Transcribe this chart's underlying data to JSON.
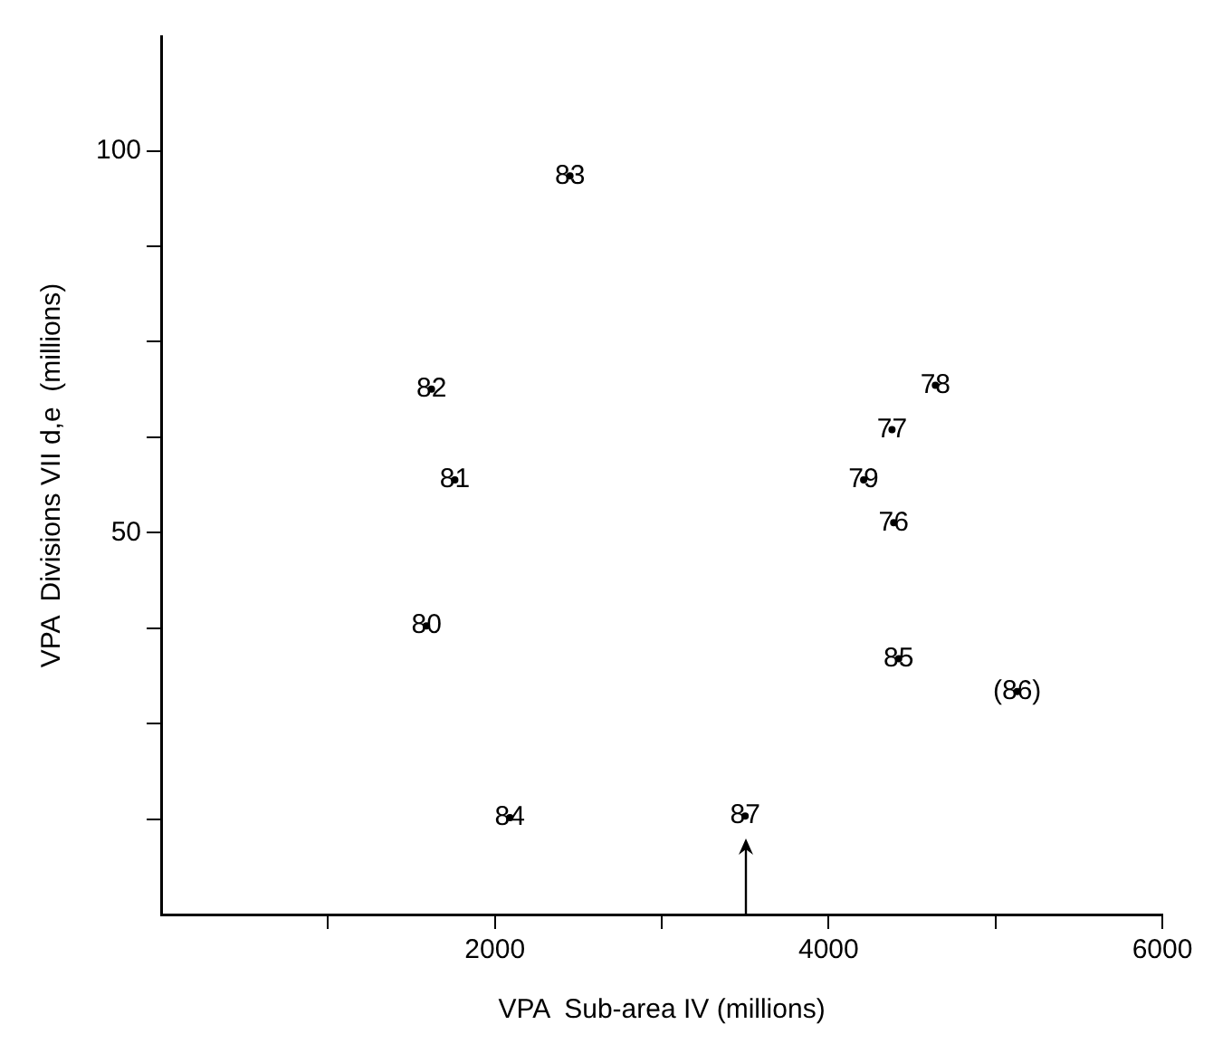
{
  "chart_data": {
    "type": "scatter",
    "xlabel": "VPA  Sub-area IV (millions)",
    "ylabel": "VPA  Divisions VII d,e  (millions)",
    "series": [
      {
        "color": "#000000",
        "x": [
          2450,
          1620,
          1760,
          1590,
          2090,
          4640,
          4380,
          4210,
          4390,
          4420,
          5130,
          3500
        ],
        "values": [
          96.7,
          68.8,
          56.9,
          37.8,
          12.7,
          69.3,
          63.5,
          56.9,
          51.3,
          33.5,
          29.2,
          12.9
        ]
      }
    ],
    "marker": "circle",
    "grid": false,
    "legend": false,
    "xlim": [
      0,
      6000
    ],
    "ylim": [
      0,
      115
    ],
    "xticks": [
      {
        "value": 1000,
        "label": null
      },
      2000,
      {
        "value": 3000,
        "label": null
      },
      4000,
      {
        "value": 5000,
        "label": null
      },
      6000
    ],
    "yticks": [
      {
        "value": 12.5,
        "label": null
      },
      {
        "value": 25,
        "label": null
      },
      {
        "value": 37.5,
        "label": null
      },
      50,
      {
        "value": 62.5,
        "label": null
      },
      {
        "value": 75,
        "label": null
      },
      {
        "value": 87.5,
        "label": null
      },
      100
    ],
    "annotations": [
      {
        "text": "83",
        "x": 2450,
        "y": 96.7
      },
      {
        "text": "82",
        "x": 1620,
        "y": 68.8
      },
      {
        "text": "81",
        "x": 1760,
        "y": 56.9
      },
      {
        "text": "80",
        "x": 1590,
        "y": 37.8
      },
      {
        "text": "84",
        "x": 2090,
        "y": 12.7
      },
      {
        "text": "78",
        "x": 4640,
        "y": 69.3
      },
      {
        "text": "77",
        "x": 4380,
        "y": 63.5
      },
      {
        "text": "79",
        "x": 4210,
        "y": 56.9
      },
      {
        "text": "76",
        "x": 4390,
        "y": 51.3
      },
      {
        "text": "85",
        "x": 4420,
        "y": 33.5
      },
      {
        "text": "(86)",
        "x": 5130,
        "y": 29.2
      },
      {
        "text": "87",
        "x": 3500,
        "y": 12.9
      }
    ]
  }
}
